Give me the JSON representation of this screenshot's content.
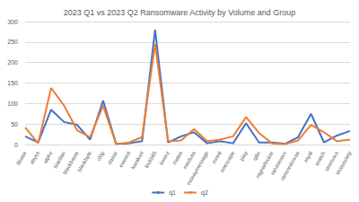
{
  "chart_data": {
    "type": "line",
    "title": "2023 Q1 vs 2023 Q2 Ransomware Activity by Volume and Group",
    "categories": [
      "8base",
      "abyss",
      "alphv",
      "bianlian",
      "blackbasta",
      "blackbyte",
      "cl0p",
      "daixin",
      "everest",
      "karakurt",
      "lockbit3",
      "lorenz",
      "malas",
      "medusa",
      "moneymessage",
      "monti",
      "noescape",
      "play",
      "qilin",
      "ragnarlocker",
      "ransomexx",
      "ransomhouse",
      "royal",
      "snatch",
      "stormous",
      "vicesociety"
    ],
    "series": [
      {
        "name": "q1",
        "color": "#4472c4",
        "values": [
          20,
          5,
          85,
          55,
          48,
          12,
          107,
          2,
          3,
          8,
          280,
          5,
          20,
          30,
          3,
          8,
          3,
          52,
          5,
          5,
          2,
          18,
          75,
          5,
          22,
          33
        ]
      },
      {
        "name": "q2",
        "color": "#ed7d31",
        "values": [
          42,
          3,
          138,
          95,
          35,
          18,
          95,
          1,
          5,
          18,
          245,
          8,
          10,
          38,
          8,
          12,
          20,
          67,
          28,
          3,
          1,
          10,
          48,
          30,
          8,
          12
        ]
      }
    ],
    "ylim": [
      0,
      300
    ],
    "yticks": [
      0,
      50,
      100,
      150,
      200,
      250,
      300
    ],
    "grid": true,
    "legend": "bottom"
  }
}
